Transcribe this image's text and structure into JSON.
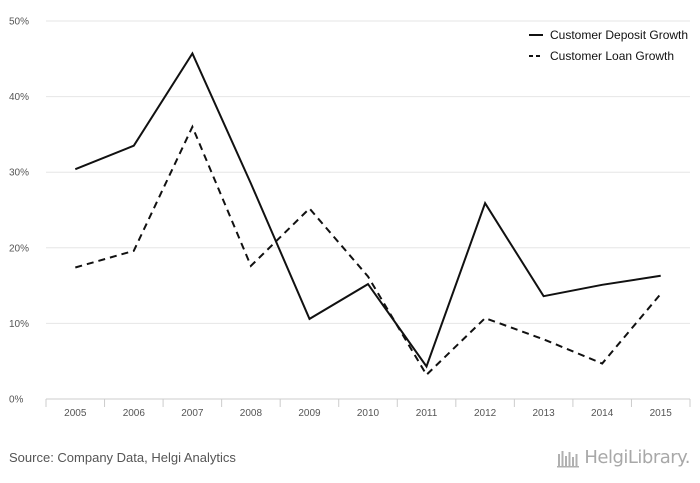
{
  "chart_data": {
    "type": "line",
    "categories": [
      "2005",
      "2006",
      "2007",
      "2008",
      "2009",
      "2010",
      "2011",
      "2012",
      "2013",
      "2014",
      "2015"
    ],
    "series": [
      {
        "name": "Customer Deposit Growth",
        "style": "solid",
        "values": [
          30.4,
          33.5,
          45.7,
          28.5,
          10.6,
          15.2,
          4.3,
          25.9,
          13.6,
          15.1,
          16.3
        ]
      },
      {
        "name": "Customer Loan Growth",
        "style": "dashed",
        "values": [
          17.4,
          19.6,
          36.0,
          17.6,
          25.2,
          16.2,
          3.2,
          10.7,
          7.9,
          4.7,
          13.9
        ]
      }
    ],
    "yticks": [
      "0%",
      "10%",
      "20%",
      "30%",
      "40%",
      "50%"
    ],
    "ylim": [
      0,
      50
    ],
    "grid": true,
    "legend_position": "top-right",
    "line_color": "#111111"
  },
  "footer": {
    "source": "Source: Company Data, Helgi Analytics",
    "brand": "HelgiLibrary."
  }
}
